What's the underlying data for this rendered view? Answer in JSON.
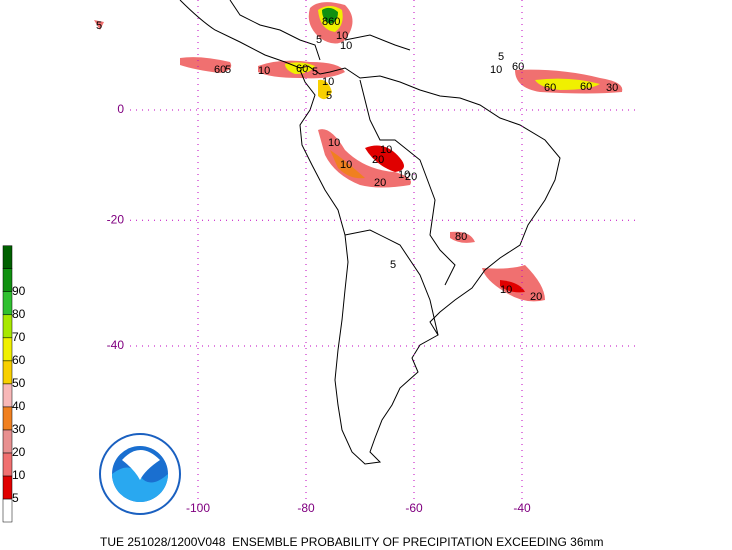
{
  "map": {
    "caption": "TUE 251028/1200V048  ENSEMBLE PROBABILITY OF PRECIPITATION EXCEEDING 36mm",
    "lon_ticks": [
      -100,
      -80,
      -60,
      -40
    ],
    "lat_ticks": [
      0,
      -20,
      -40
    ],
    "colorbar": {
      "levels": [
        5,
        10,
        20,
        30,
        40,
        50,
        60,
        70,
        80,
        90
      ],
      "colors": [
        "#ffffff",
        "#e00000",
        "#f07070",
        "#e89090",
        "#f08020",
        "#f8b8b8",
        "#f8d000",
        "#f0f000",
        "#a8e800",
        "#30c030",
        "#109010",
        "#006000",
        "#3090f0"
      ]
    },
    "contour_labels": [
      "5",
      "60",
      "5",
      "10",
      "860",
      "5",
      "10",
      "10",
      "60",
      "5",
      "10",
      "5",
      "5",
      "10",
      "60",
      "60",
      "60",
      "30",
      "10",
      "10",
      "10",
      "20",
      "20",
      "10",
      "20",
      "80",
      "5",
      "10",
      "20"
    ]
  }
}
